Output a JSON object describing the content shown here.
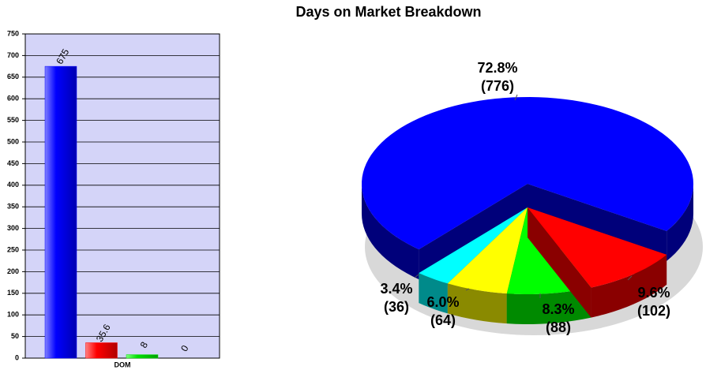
{
  "chart_data": [
    {
      "type": "bar",
      "title": "Days on Market Breakdown",
      "categories": [
        "DOM"
      ],
      "series": [
        {
          "color": "#0000ff",
          "values": [
            675
          ]
        },
        {
          "color": "#ff0000",
          "values": [
            35.6
          ]
        },
        {
          "color": "#00e000",
          "values": [
            8
          ]
        },
        {
          "color": "#ffff00",
          "values": [
            0
          ]
        }
      ],
      "ylim": [
        0,
        750
      ],
      "yticks": [
        0,
        50,
        100,
        150,
        200,
        250,
        300,
        350,
        400,
        450,
        500,
        550,
        600,
        650,
        700,
        750
      ],
      "grid": true,
      "background": "#d4d4f8"
    },
    {
      "type": "pie",
      "values": [
        776,
        102,
        88,
        64,
        36
      ],
      "value_labels": [
        "(776)",
        "(102)",
        "(88)",
        "(64)",
        "(36)"
      ],
      "percents": [
        72.8,
        9.6,
        8.3,
        6,
        3.4
      ],
      "percent_labels": [
        "72.8%",
        "9.6%",
        "8.3%",
        "6.0%",
        "3.4%"
      ],
      "colors": [
        "#0000ff",
        "#ff0000",
        "#00ff00",
        "#ffff00",
        "#00ffff"
      ],
      "side_colors": [
        "#00007a",
        "#8a0000",
        "#008a00",
        "#8a8a00",
        "#008a8a"
      ]
    }
  ]
}
